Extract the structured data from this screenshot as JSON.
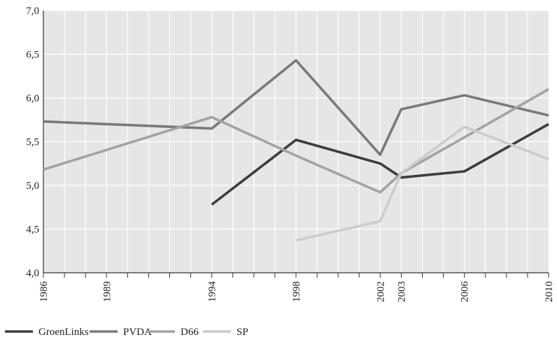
{
  "chart_data": {
    "type": "line",
    "title": "",
    "xlabel": "",
    "ylabel": "",
    "xlim": [
      1986,
      2010
    ],
    "ylim": [
      4.0,
      7.0
    ],
    "y_ticks": [
      "4,0",
      "4,5",
      "5,0",
      "5,5",
      "6,0",
      "6,5",
      "7,0"
    ],
    "y_tick_values": [
      4.0,
      4.5,
      5.0,
      5.5,
      6.0,
      6.5,
      7.0
    ],
    "x_tick_labels": [
      "1986",
      "1989",
      "1994",
      "1998",
      "2002",
      "2003",
      "2006",
      "2010"
    ],
    "grid": true,
    "legend_position": "bottom-left",
    "series": [
      {
        "name": "GroenLinks",
        "color": "#3d3d3d",
        "x": [
          1994,
          1998,
          2002,
          2003,
          2006,
          2010
        ],
        "y": [
          4.78,
          5.52,
          5.25,
          5.09,
          5.16,
          5.7
        ]
      },
      {
        "name": "PVDA",
        "color": "#7a7a7a",
        "x": [
          1986,
          1994,
          1998,
          2002,
          2003,
          2006,
          2010
        ],
        "y": [
          5.73,
          5.65,
          6.43,
          5.35,
          5.87,
          6.03,
          5.8
        ]
      },
      {
        "name": "D66",
        "color": "#a3a3a3",
        "x": [
          1986,
          1994,
          1998,
          2002,
          2003,
          2006,
          2010
        ],
        "y": [
          5.18,
          5.78,
          5.34,
          4.92,
          5.14,
          5.55,
          6.1
        ]
      },
      {
        "name": "SP",
        "color": "#cccccc",
        "x": [
          1998,
          2002,
          2003,
          2006,
          2010
        ],
        "y": [
          4.37,
          4.59,
          5.14,
          5.67,
          5.3
        ]
      }
    ]
  }
}
